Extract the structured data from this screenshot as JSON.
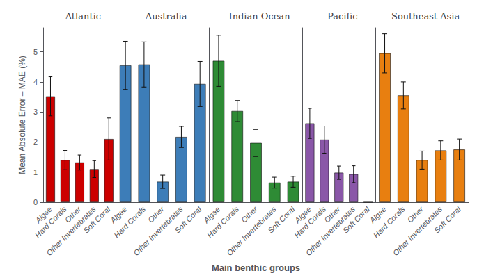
{
  "chart_data": [
    {
      "type": "bar",
      "title": "Atlantic",
      "categories": [
        "Algae",
        "Hard Corals",
        "Other",
        "Other Invertebrates",
        "Soft Coral"
      ],
      "values": [
        3.52,
        1.4,
        1.32,
        1.1,
        2.1
      ],
      "errors": [
        0.65,
        0.32,
        0.25,
        0.28,
        0.7
      ],
      "color": "#CC0000",
      "ylabel": "Mean Absolute Error – MAE (%)",
      "ylim": [
        0,
        5.8
      ],
      "yticks": [
        0,
        1,
        2,
        3,
        4,
        5
      ],
      "grid": false
    },
    {
      "type": "bar",
      "title": "Australia",
      "categories": [
        "Algae",
        "Hard Corals",
        "Other",
        "Other Invertebrates",
        "Soft Coral"
      ],
      "values": [
        4.55,
        4.58,
        0.68,
        2.17,
        3.93
      ],
      "errors": [
        0.8,
        0.75,
        0.22,
        0.35,
        0.75
      ],
      "color": "#3D7DB8",
      "ylim": [
        0,
        5.8
      ],
      "yticks": [
        0,
        1,
        2,
        3,
        4,
        5
      ],
      "grid": false,
      "tick_labels": "x"
    },
    {
      "type": "bar",
      "title": "Indian Ocean",
      "categories": [
        "Algae",
        "Hard Corals",
        "Other",
        "Other Invertebrates",
        "Soft Coral"
      ],
      "values": [
        4.7,
        3.03,
        1.97,
        0.65,
        0.68
      ],
      "errors": [
        0.85,
        0.35,
        0.45,
        0.18,
        0.18
      ],
      "color": "#2E8B35",
      "xlabel": "Main benthic groups",
      "ylim": [
        0,
        5.8
      ],
      "yticks": [
        0,
        1,
        2,
        3,
        4,
        5
      ],
      "grid": false,
      "tick_labels": "x"
    },
    {
      "type": "bar",
      "title": "Pacific",
      "categories": [
        "Algae",
        "Hard Corals",
        "Other",
        "Other Invertebrates",
        "Soft Coral"
      ],
      "values": [
        2.62,
        2.08,
        0.98,
        0.93,
        0.0
      ],
      "errors": [
        0.5,
        0.45,
        0.22,
        0.28,
        0.0
      ],
      "color": "#8A57A8",
      "ylim": [
        0,
        5.8
      ],
      "yticks": [
        0,
        1,
        2,
        3,
        4,
        5
      ],
      "grid": false,
      "tick_labels": "x"
    },
    {
      "type": "bar",
      "title": "Southeast Asia",
      "categories": [
        "Algae",
        "Hard Corals",
        "Other",
        "Other Invertebrates",
        "Soft Coral"
      ],
      "values": [
        4.95,
        3.55,
        1.4,
        1.72,
        1.75
      ],
      "errors": [
        0.65,
        0.45,
        0.3,
        0.32,
        0.35
      ],
      "color": "#E87F10",
      "ylim": [
        0,
        5.8
      ],
      "yticks": [
        0,
        1,
        2,
        3,
        4,
        5
      ],
      "grid": false,
      "tick_labels": "x"
    }
  ]
}
